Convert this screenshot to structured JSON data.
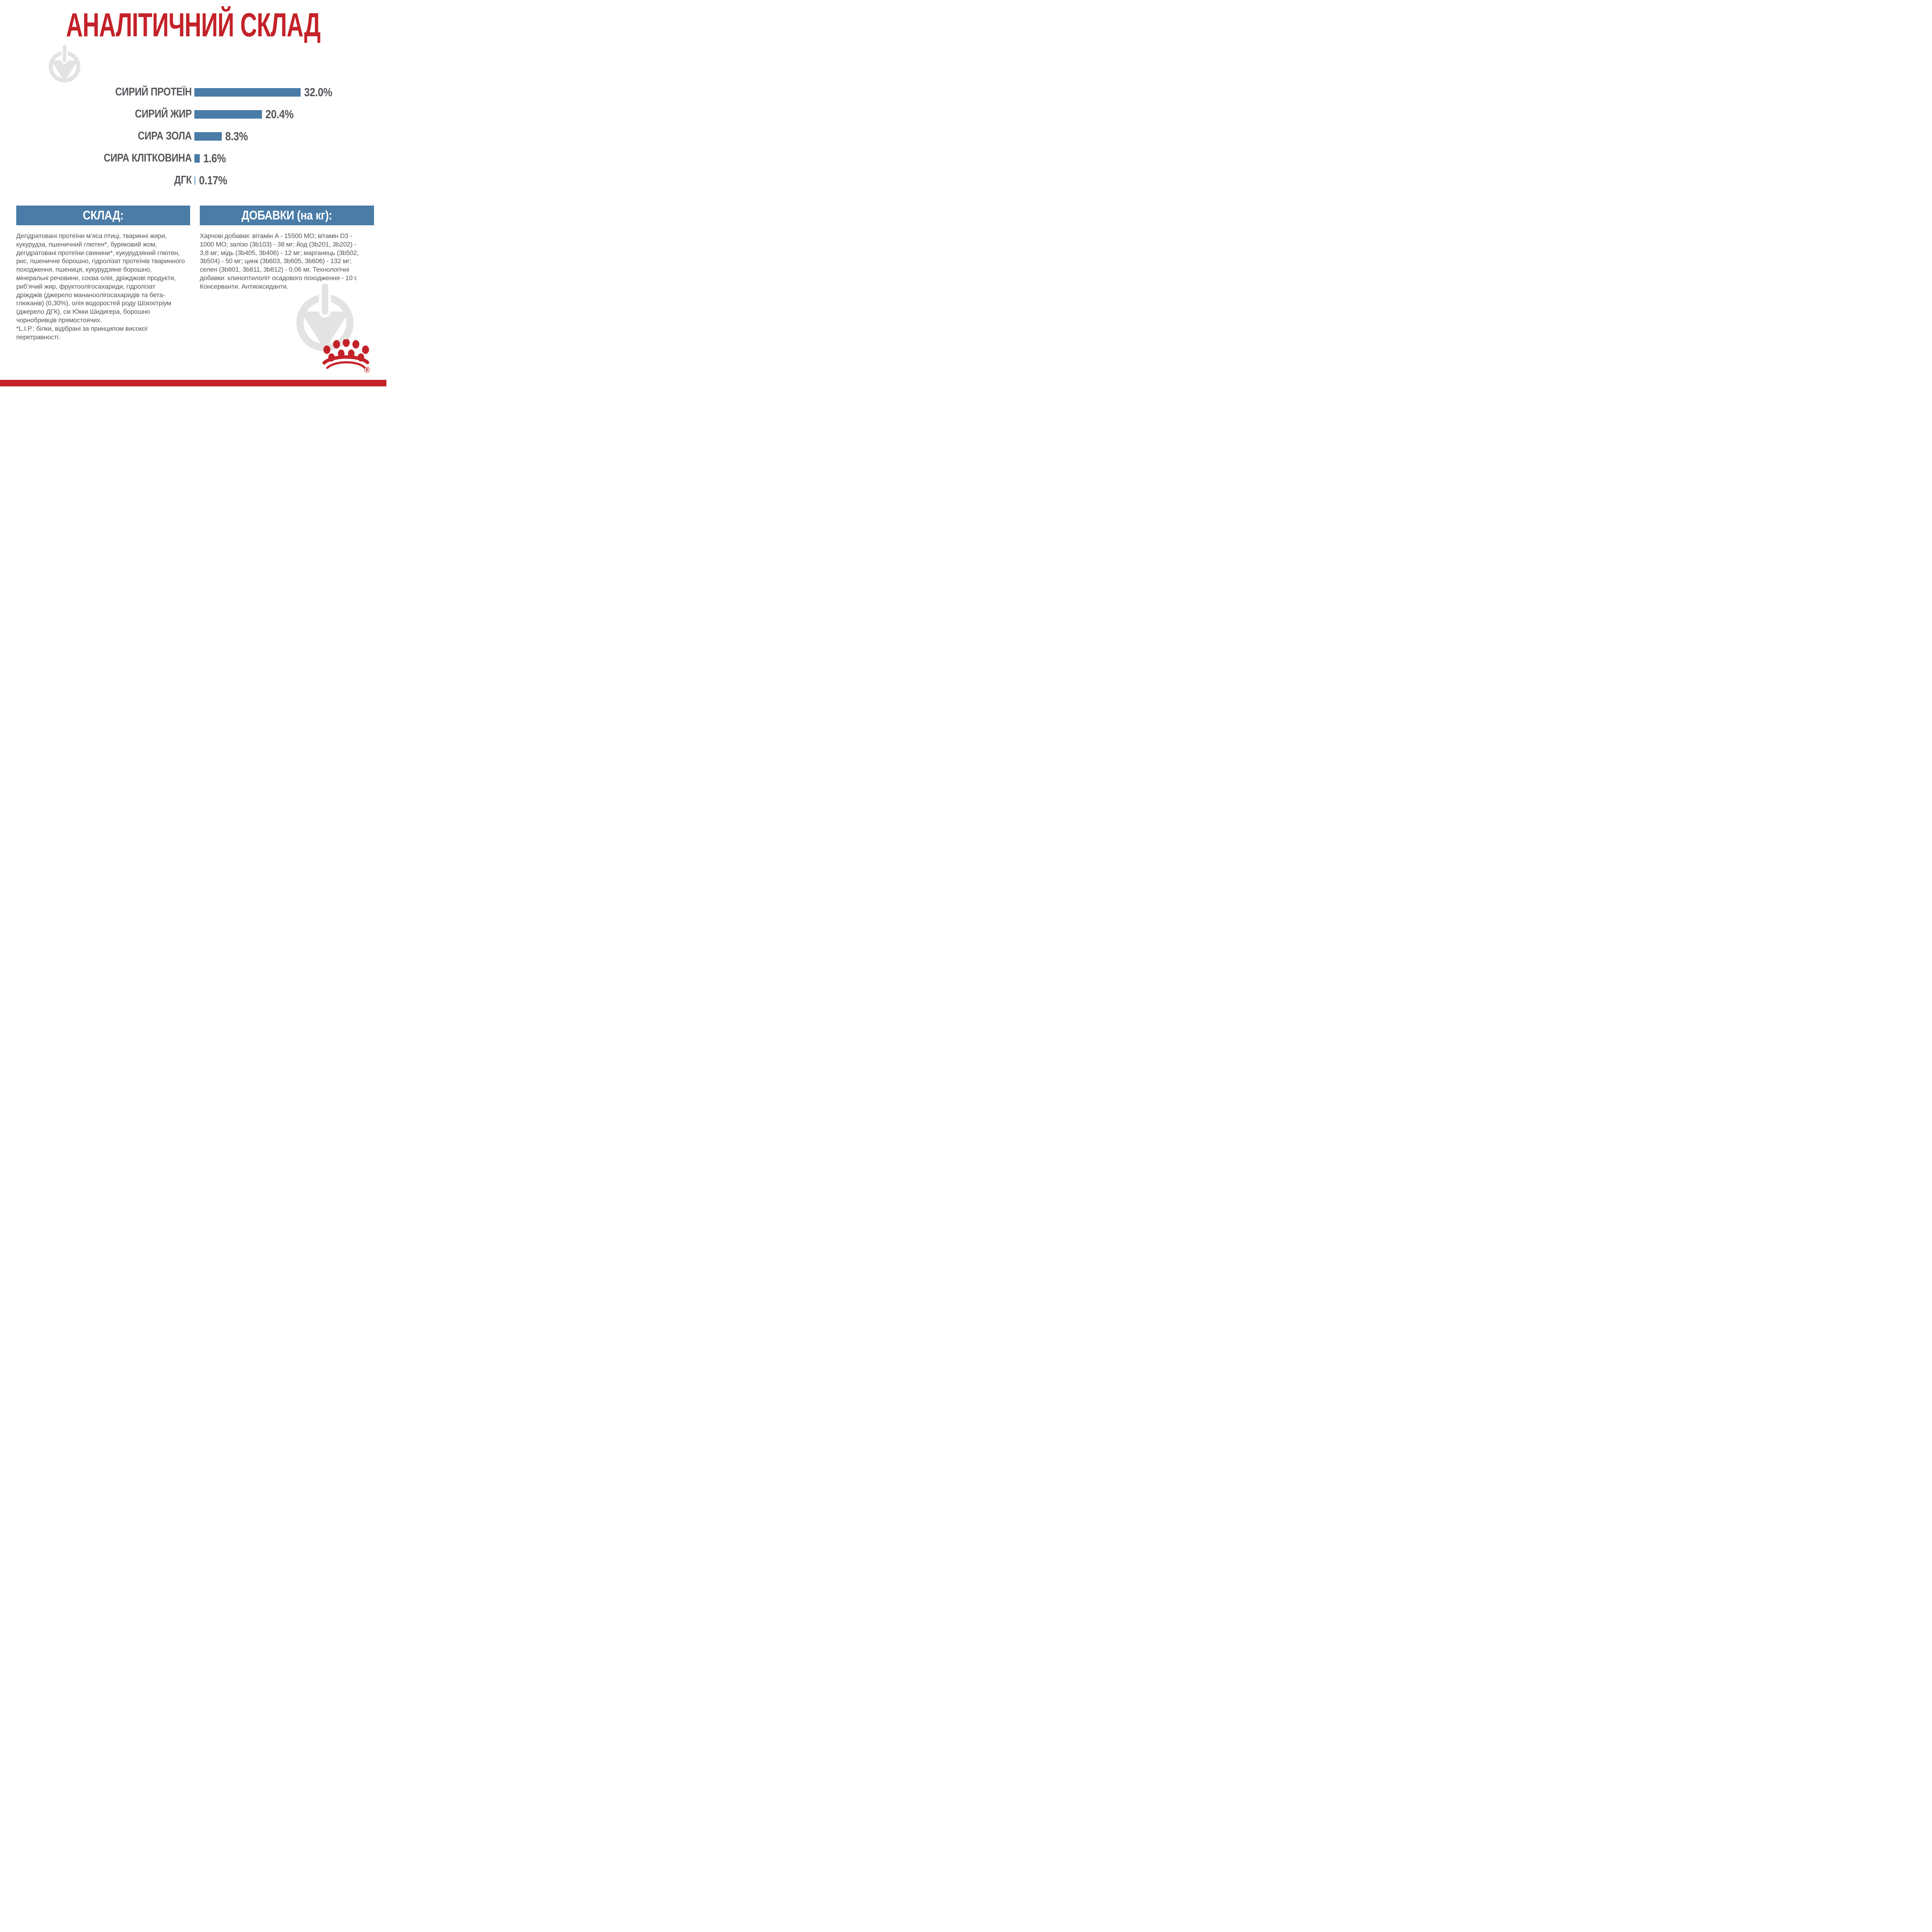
{
  "palette": {
    "red": "#c42229",
    "bar_blue": "#4a7ca7",
    "bar_blue_light": "#8ab4d2",
    "text_gray": "#55575b",
    "watermark_gray": "#e3e3e3",
    "background": "#ffffff"
  },
  "title": "АНАЛІТИЧНИЙ СКЛАД",
  "chart_data": {
    "type": "bar",
    "orientation": "horizontal",
    "title": "АНАЛІТИЧНИЙ СКЛАД",
    "categories": [
      "СИРИЙ ПРОТЕЇН",
      "СИРИЙ ЖИР",
      "СИРА ЗОЛА",
      "СИРА КЛІТКОВИНА",
      "ДГК"
    ],
    "values": [
      32.0,
      20.4,
      8.3,
      1.6,
      0.17
    ],
    "value_labels": [
      "32.0%",
      "20.4%",
      "8.3%",
      "1.6%",
      "0.17%"
    ],
    "unit": "%",
    "xlim": [
      0,
      32
    ],
    "grid": false,
    "axes_visible": false,
    "value_label_position": "right-of-bar",
    "bar_colors": [
      "#4a7ca7",
      "#4a7ca7",
      "#4a7ca7",
      "#4a7ca7",
      "#8ab4d2"
    ]
  },
  "sections": {
    "composition": {
      "header": "СКЛАД:",
      "lines": [
        "Дегідратовані протеїни м’яса птиці, тваринні жири,",
        "кукурудза, пшеничний глютен*, буряковий жом,",
        "дегідратовані протеїни свинини*, кукурудзяний глютен,",
        "рис, пшеничне борошно, гідролізат протеїнів тваринного",
        "походження, пшениця, кукурудзяне борошно,",
        "мінеральні речовини, соєва олія, дріжджові продукти,",
        "риб’ячий жир, фруктоолігосахариди, гідролізат",
        "дріжджів (джерело мананоолігосахаридів та бета-",
        "глюканів) (0,30%), олія водоростей роду Шізохітріум",
        "(джерело ДГК), сік Юкки Шидигера, борошно",
        "чорнобривців прямостоячих.",
        "*L.I.P.: білки, відібрані за принципом високої",
        "перетравності."
      ]
    },
    "additives": {
      "header": "ДОБАВКИ (на кг):",
      "lines": [
        "Харчові добавки: вітамін A - 15500 МО; вітамін D3 -",
        "1000 МО; залізо (3b103) - 38 мг; йод (3b201, 3b202) -",
        "3,8 мг; мідь (3b405, 3b406) - 12 мг; марганець (3b502,",
        "3b504) - 50 мг; цинк (3b603, 3b605, 3b606) - 132 мг;",
        "селен (3b801, 3b811, 3b812) - 0,06 мг. Технологічні",
        "добавки: клиноптилоліт осадового походження - 10 г.",
        "Консерванти. Антиоксиданти."
      ]
    }
  },
  "logo": {
    "name": "royal-canin-crown",
    "registered_mark": "®",
    "color": "#c42229"
  }
}
